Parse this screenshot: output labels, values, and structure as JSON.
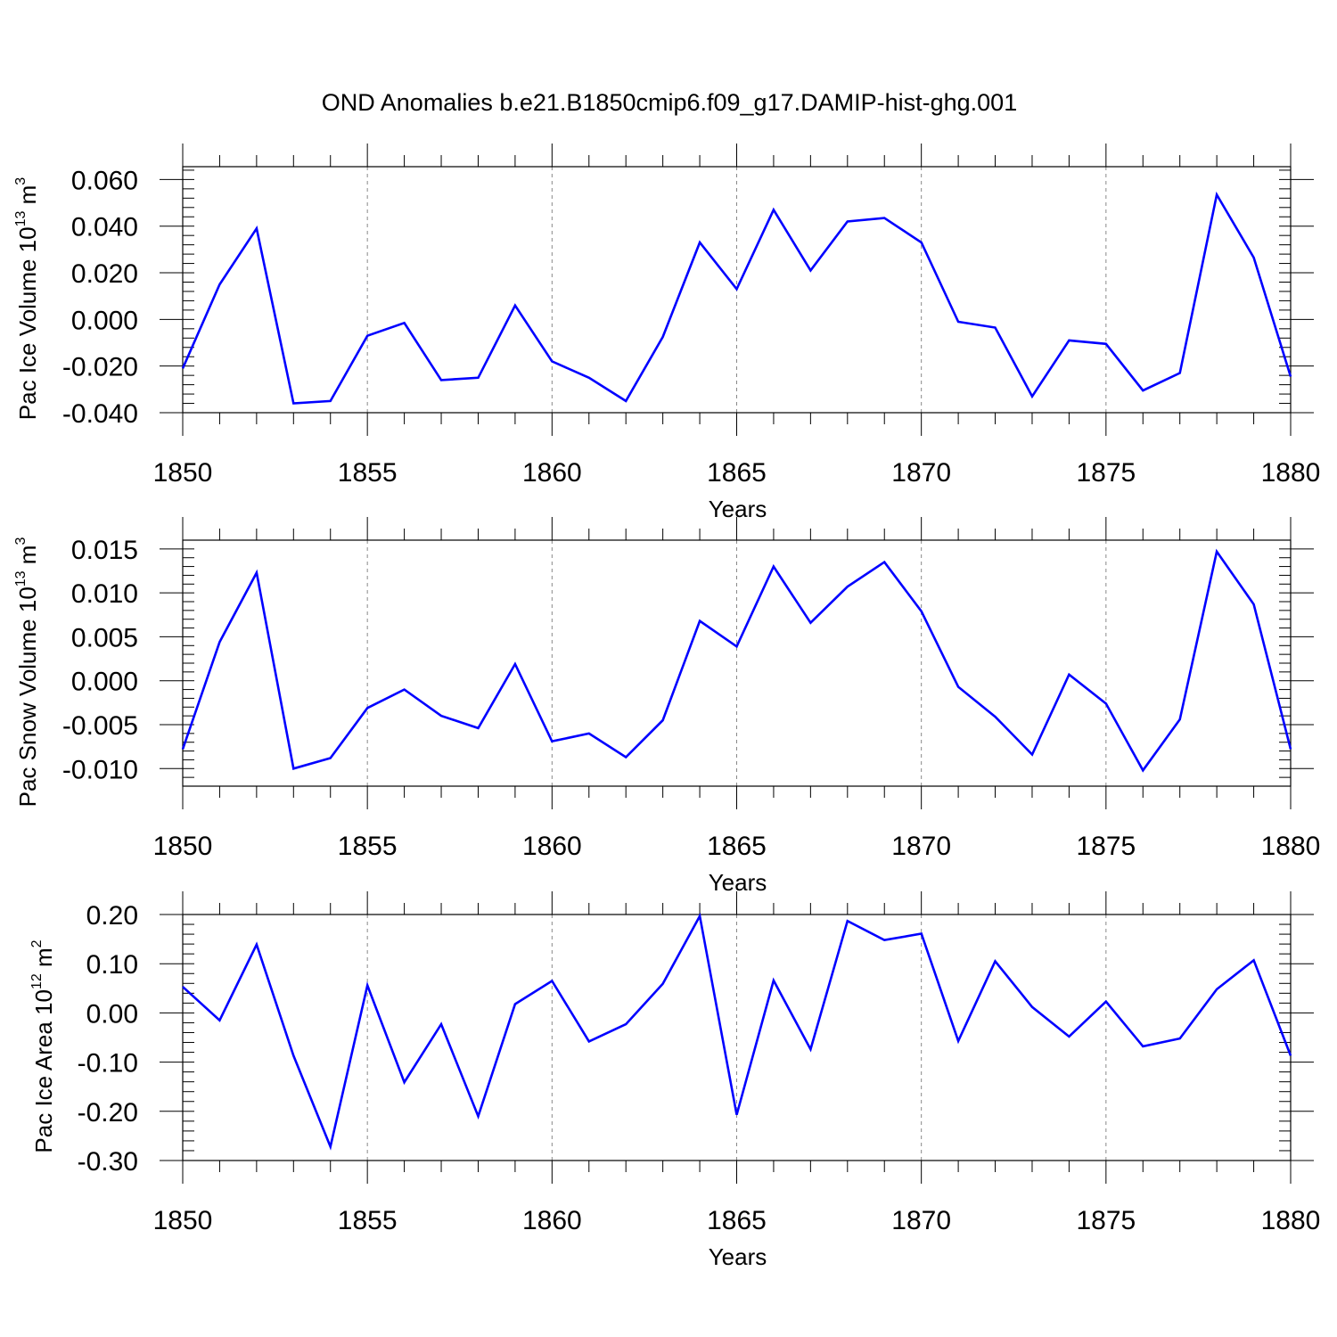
{
  "title": "OND Anomalies b.e21.B1850cmip6.f09_g17.DAMIP-hist-ghg.001",
  "series_color": "#0000ff",
  "grid_color": "#888888",
  "chart_data": [
    {
      "type": "line",
      "ylabel_main": "Pac Ice Volume 10",
      "ylabel_exp": "13",
      "ylabel_unit": " m",
      "ylabel_unit_exp": "3",
      "xlabel": "Years",
      "xlim": [
        1850,
        1880
      ],
      "ylim": [
        -0.04,
        0.0655
      ],
      "yticks": [
        0.06,
        0.04,
        0.02,
        0.0,
        -0.02,
        -0.04
      ],
      "ytick_labels": [
        "0.060",
        "0.040",
        "0.020",
        "0.000",
        "-0.020",
        "-0.040"
      ],
      "xticks": [
        1850,
        1855,
        1860,
        1865,
        1870,
        1875,
        1880
      ],
      "xtick_labels": [
        "1850",
        "1855",
        "1860",
        "1865",
        "1870",
        "1875",
        "1880"
      ],
      "grid": "vertical dashed at major x ticks",
      "x": [
        1850,
        1851,
        1852,
        1853,
        1854,
        1855,
        1856,
        1857,
        1858,
        1859,
        1860,
        1861,
        1862,
        1863,
        1864,
        1865,
        1866,
        1867,
        1868,
        1869,
        1870,
        1871,
        1872,
        1873,
        1874,
        1875,
        1876,
        1877,
        1878,
        1879,
        1880
      ],
      "values": [
        -0.021,
        0.015,
        0.039,
        -0.036,
        -0.035,
        -0.007,
        -0.0015,
        -0.026,
        -0.025,
        0.006,
        -0.018,
        -0.025,
        -0.035,
        -0.0075,
        0.033,
        0.013,
        0.047,
        0.021,
        0.042,
        0.0435,
        0.033,
        -0.001,
        -0.0035,
        -0.033,
        -0.009,
        -0.0105,
        -0.0305,
        -0.023,
        0.0535,
        0.0265,
        -0.0245
      ]
    },
    {
      "type": "line",
      "ylabel_main": "Pac Snow Volume 10",
      "ylabel_exp": "13",
      "ylabel_unit": " m",
      "ylabel_unit_exp": "3",
      "xlabel": "Years",
      "xlim": [
        1850,
        1880
      ],
      "ylim": [
        -0.012,
        0.016
      ],
      "yticks": [
        0.015,
        0.01,
        0.005,
        0.0,
        -0.005,
        -0.01
      ],
      "ytick_labels": [
        "0.015",
        "0.010",
        "0.005",
        "0.000",
        "-0.005",
        "-0.010"
      ],
      "xticks": [
        1850,
        1855,
        1860,
        1865,
        1870,
        1875,
        1880
      ],
      "xtick_labels": [
        "1850",
        "1855",
        "1860",
        "1865",
        "1870",
        "1875",
        "1880"
      ],
      "grid": "vertical dashed at major x ticks",
      "x": [
        1850,
        1851,
        1852,
        1853,
        1854,
        1855,
        1856,
        1857,
        1858,
        1859,
        1860,
        1861,
        1862,
        1863,
        1864,
        1865,
        1866,
        1867,
        1868,
        1869,
        1870,
        1871,
        1872,
        1873,
        1874,
        1875,
        1876,
        1877,
        1878,
        1879,
        1880
      ],
      "values": [
        -0.0078,
        0.0044,
        0.0123,
        -0.01,
        -0.0088,
        -0.0031,
        -0.001,
        -0.004,
        -0.0054,
        0.0019,
        -0.0069,
        -0.006,
        -0.0087,
        -0.0045,
        0.0068,
        0.0039,
        0.013,
        0.0066,
        0.0107,
        0.0135,
        0.0079,
        -0.0007,
        -0.0041,
        -0.0084,
        0.0007,
        -0.0026,
        -0.0102,
        -0.0044,
        0.0147,
        0.0087,
        -0.0078
      ]
    },
    {
      "type": "line",
      "ylabel_main": "Pac Ice Area 10",
      "ylabel_exp": "12",
      "ylabel_unit": " m",
      "ylabel_unit_exp": "2",
      "xlabel": "Years",
      "xlim": [
        1850,
        1880
      ],
      "ylim": [
        -0.3,
        0.2
      ],
      "yticks": [
        0.2,
        0.1,
        0.0,
        -0.1,
        -0.2,
        -0.3
      ],
      "ytick_labels": [
        "0.20",
        "0.10",
        "0.00",
        "-0.10",
        "-0.20",
        "-0.30"
      ],
      "xticks": [
        1850,
        1855,
        1860,
        1865,
        1870,
        1875,
        1880
      ],
      "xtick_labels": [
        "1850",
        "1855",
        "1860",
        "1865",
        "1870",
        "1875",
        "1880"
      ],
      "grid": "vertical dashed at major x ticks",
      "x": [
        1850,
        1851,
        1852,
        1853,
        1854,
        1855,
        1856,
        1857,
        1858,
        1859,
        1860,
        1861,
        1862,
        1863,
        1864,
        1865,
        1866,
        1867,
        1868,
        1869,
        1870,
        1871,
        1872,
        1873,
        1874,
        1875,
        1876,
        1877,
        1878,
        1879,
        1880
      ],
      "values": [
        0.053,
        -0.015,
        0.139,
        -0.087,
        -0.272,
        0.056,
        -0.141,
        -0.023,
        -0.21,
        0.018,
        0.065,
        -0.058,
        -0.023,
        0.059,
        0.197,
        -0.207,
        0.066,
        -0.074,
        0.187,
        0.148,
        0.161,
        -0.057,
        0.105,
        0.012,
        -0.048,
        0.023,
        -0.068,
        -0.052,
        0.048,
        0.107,
        -0.087
      ]
    }
  ]
}
